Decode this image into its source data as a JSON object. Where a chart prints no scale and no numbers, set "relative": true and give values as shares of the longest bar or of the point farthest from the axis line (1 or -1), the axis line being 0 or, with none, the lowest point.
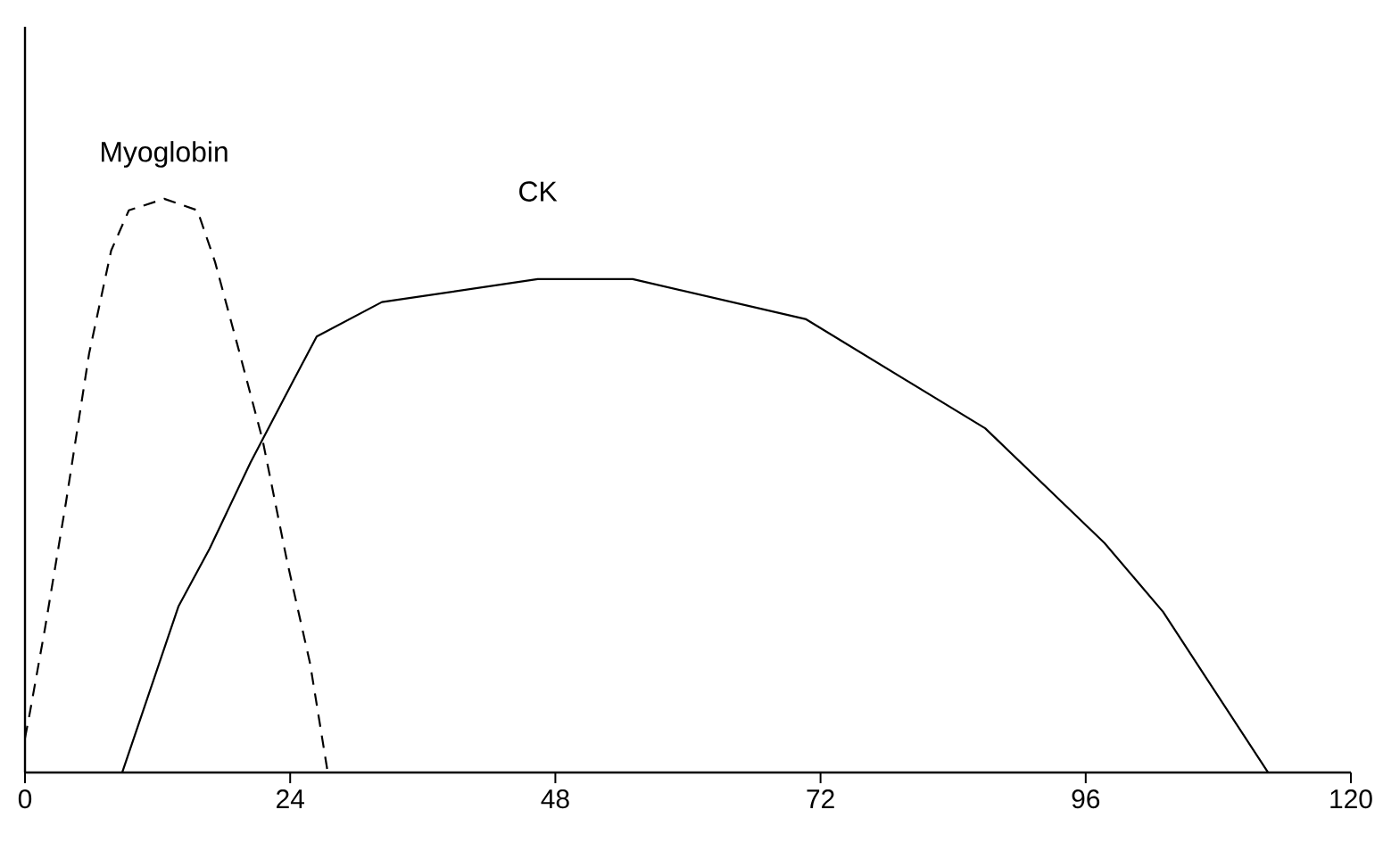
{
  "chart_data": {
    "type": "line",
    "relative": true,
    "xlim": [
      0,
      120
    ],
    "xticks": [
      0,
      24,
      48,
      72,
      96,
      120
    ],
    "series": [
      {
        "name": "Myoglobin",
        "color": "#000000",
        "line_style": "dashed",
        "x": [
          0,
          0.4,
          1.8,
          3.7,
          5.8,
          7.8,
          9.4,
          12.6,
          15.6,
          17.2,
          19.3,
          21.5,
          23.7,
          25.8,
          27.4
        ],
        "values": [
          0.06,
          0.1,
          0.25,
          0.47,
          0.73,
          0.91,
          0.98,
          1.0,
          0.98,
          0.89,
          0.74,
          0.58,
          0.37,
          0.19,
          0
        ]
      },
      {
        "name": "CK",
        "color": "#000000",
        "line_style": "solid",
        "x": [
          8.8,
          13.9,
          16.7,
          20.4,
          24.2,
          26.4,
          32.3,
          46.4,
          55,
          70.7,
          86.9,
          97.7,
          103,
          112.5
        ],
        "values": [
          0,
          0.29,
          0.39,
          0.54,
          0.68,
          0.76,
          0.82,
          0.86,
          0.86,
          0.79,
          0.6,
          0.4,
          0.28,
          0
        ]
      }
    ]
  }
}
